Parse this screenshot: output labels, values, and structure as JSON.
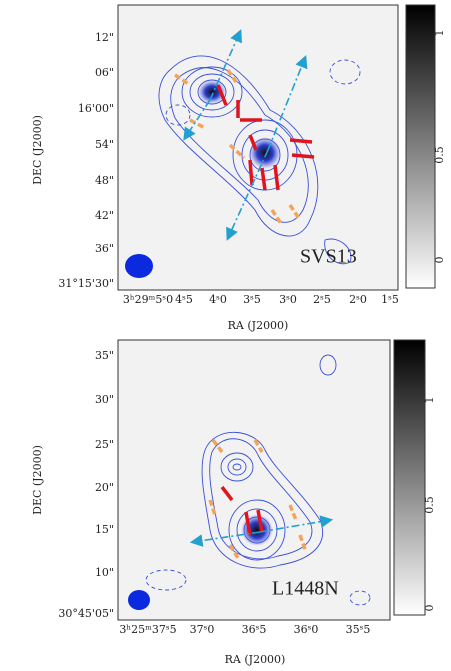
{
  "panels": [
    {
      "source": "SVS13",
      "x_label": "RA (J2000)",
      "y_label": "DEC (J2000)",
      "x_ticks": [
        "3ʰ29ᵐ5ˢ0",
        "4ˢ5",
        "4ˢ0",
        "3ˢ5",
        "3ˢ0",
        "2ˢ5",
        "2ˢ0",
        "1ˢ5"
      ],
      "y_ticks": [
        "12\"",
        "06\"",
        "16'00\"",
        "54\"",
        "48\"",
        "42\"",
        "36\"",
        "31°15'30\""
      ],
      "colorbar_ticks": [
        "1",
        "0.5",
        "0"
      ]
    },
    {
      "source": "L1448N",
      "x_label": "RA (J2000)",
      "y_label": "DEC (J2000)",
      "x_ticks": [
        "3ʰ25ᵐ37ˢ5",
        "37ˢ0",
        "36ˢ5",
        "36ˢ0",
        "35ˢ5"
      ],
      "y_ticks": [
        "35\"",
        "30\"",
        "25\"",
        "20\"",
        "15\"",
        "10\"",
        "30°45'05\""
      ],
      "colorbar_ticks": [
        "1",
        "0.5",
        "0"
      ]
    }
  ]
}
